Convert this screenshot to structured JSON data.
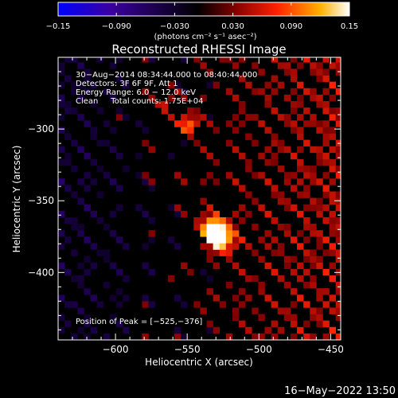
{
  "chart_data": {
    "type": "heatmap",
    "title": "Reconstructed RHESSI Image",
    "xlabel": "Heliocentric X (arcsec)",
    "ylabel": "Heliocentric Y (arcsec)",
    "xlim": [
      -640,
      -443
    ],
    "ylim": [
      -447,
      -250
    ],
    "x_ticks": [
      -600,
      -550,
      -500,
      -450
    ],
    "x_tick_labels": [
      "−600",
      "−550",
      "−500",
      "−450"
    ],
    "y_ticks": [
      -400,
      -350,
      -300
    ],
    "y_tick_labels": [
      "−400",
      "−350",
      "−300"
    ],
    "colorbar": {
      "range": [
        -0.15,
        0.15
      ],
      "ticks": [
        -0.15,
        -0.09,
        -0.03,
        0.03,
        0.09,
        0.15
      ],
      "tick_labels": [
        "−0.15",
        "−0.090",
        "−0.030",
        "0.030",
        "0.090",
        "0.15"
      ],
      "unit_label": "(photons cm⁻² s⁻¹ asec⁻²)",
      "colors": [
        "#0000ff",
        "#3a00a0",
        "#000000",
        "#7a0000",
        "#ff2000",
        "#ffb000",
        "#ffffff"
      ]
    },
    "info_lines": [
      "30−Aug−2014 08:34:44.000 to 08:40:44.000",
      "Detectors: 3F 6F 9F, Att 1",
      "Energy Range: 6.0 − 12.0 keV",
      "Clean     Total counts: 1.75E+04"
    ],
    "peak_label": "Position of Peak = [−525,−376]",
    "peak": [
      -525,
      -376
    ],
    "sources": [
      {
        "x": -527,
        "y": -376,
        "peak": 0.15,
        "sigma": 7
      },
      {
        "x": -533,
        "y": -368,
        "peak": 0.11,
        "sigma": 6
      },
      {
        "x": -549,
        "y": -297,
        "peak": 0.1,
        "sigma": 5
      },
      {
        "x": -565,
        "y": -283,
        "peak": 0.05,
        "sigma": 6
      }
    ]
  },
  "footer": {
    "date": "16−May−2022 13:50"
  }
}
